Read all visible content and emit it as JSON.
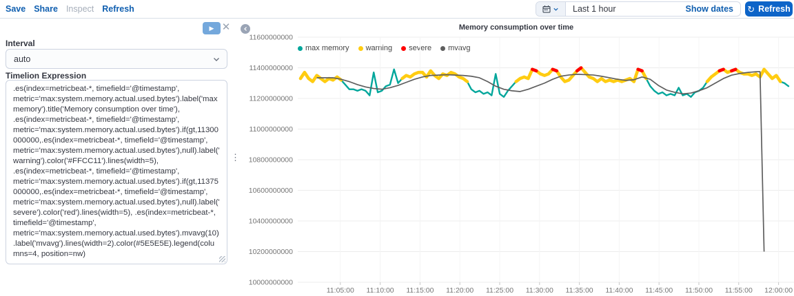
{
  "top_bar": {
    "links": [
      {
        "label": "Save",
        "disabled": false
      },
      {
        "label": "Share",
        "disabled": false
      },
      {
        "label": "Inspect",
        "disabled": true
      },
      {
        "label": "Refresh",
        "disabled": false
      }
    ],
    "time_picker": {
      "calendar_icon": "calendar-icon",
      "chevron_icon": "chevron-down-icon",
      "selected_range": "Last 1 hour",
      "show_dates_label": "Show dates",
      "refresh_label": "Refresh",
      "refresh_icon": "refresh-icon"
    }
  },
  "editor_panel": {
    "play_icon": "play-icon",
    "close_icon": "close-icon",
    "interval": {
      "label": "Interval",
      "value": "auto"
    },
    "expression": {
      "label": "Timelion Expression",
      "value": ".es(index=metricbeat-*, timefield='@timestamp', metric='max:system.memory.actual.used.bytes').label('max memory').title('Memory consumption over time'), .es(index=metricbeat-*, timefield='@timestamp', metric='max:system.memory.actual.used.bytes').if(gt,11300000000,.es(index=metricbeat-*, timefield='@timestamp', metric='max:system.memory.actual.used.bytes'),null).label('warning').color('#FFCC11').lines(width=5), .es(index=metricbeat-*, timefield='@timestamp', metric='max:system.memory.actual.used.bytes').if(gt,11375000000,.es(index=metricbeat-*, timefield='@timestamp', metric='max:system.memory.actual.used.bytes'),null).label('severe').color('red').lines(width=5), .es(index=metricbeat-*, timefield='@timestamp', metric='max:system.memory.actual.used.bytes').mvavg(10).label('mvavg').lines(width=2).color(#5E5E5E).legend(columns=4, position=nw)"
    }
  },
  "colors": {
    "link_blue": "#105fb0",
    "button_blue": "#0d64c8",
    "max_memory_teal": "#00A69B",
    "warning_yellow": "#FFCC11",
    "severe_red": "#FF0000",
    "mvavg_gray": "#5E5E5E"
  },
  "chart_data": {
    "type": "line",
    "title": "Memory consumption over time",
    "time_range": {
      "from": "11:00:00",
      "to": "12:00:00"
    },
    "x_axis": {
      "ticks": [
        "11:05:00",
        "11:10:00",
        "11:15:00",
        "11:20:00",
        "11:25:00",
        "11:30:00",
        "11:35:00",
        "11:40:00",
        "11:45:00",
        "11:50:00",
        "11:55:00",
        "12:00:00"
      ]
    },
    "y_axis": {
      "min": 10000000000,
      "max": 11600000000,
      "ticks": [
        "11600000000",
        "11400000000",
        "11200000000",
        "11000000000",
        "10800000000",
        "10600000000",
        "10400000000",
        "10200000000",
        "10000000000"
      ]
    },
    "value_scale": 1000000000,
    "legend": {
      "position": "nw",
      "columns": 4
    },
    "series": [
      {
        "name": "max memory",
        "type": "line",
        "color": "#00A69B",
        "line_width": 2.4,
        "start": "11:00:00",
        "interval_seconds": 30,
        "values_e9": [
          11.33,
          11.37,
          11.33,
          11.31,
          11.35,
          11.33,
          11.31,
          11.33,
          11.32,
          11.34,
          11.32,
          11.29,
          11.26,
          11.26,
          11.25,
          11.26,
          11.25,
          11.22,
          11.37,
          11.24,
          11.25,
          11.28,
          11.29,
          11.39,
          11.3,
          11.33,
          11.35,
          11.34,
          11.36,
          11.37,
          11.37,
          11.34,
          11.38,
          11.35,
          11.33,
          11.36,
          11.35,
          11.37,
          11.36,
          11.34,
          11.33,
          11.31,
          11.26,
          11.24,
          11.25,
          11.23,
          11.24,
          11.22,
          11.36,
          11.23,
          11.21,
          11.25,
          11.28,
          11.31,
          11.33,
          11.34,
          11.33,
          11.39,
          11.38,
          11.36,
          11.35,
          11.36,
          11.39,
          11.38,
          11.34,
          11.31,
          11.32,
          11.35,
          11.38,
          11.4,
          11.37,
          11.34,
          11.33,
          11.31,
          11.33,
          11.31,
          11.32,
          11.31,
          11.32,
          11.31,
          11.32,
          11.33,
          11.31,
          11.39,
          11.38,
          11.33,
          11.28,
          11.25,
          11.23,
          11.24,
          11.22,
          11.23,
          11.22,
          11.27,
          11.22,
          11.23,
          11.21,
          11.24,
          11.25,
          11.27,
          11.31,
          11.34,
          11.36,
          11.38,
          11.39,
          11.37,
          11.38,
          11.39,
          11.37,
          11.36,
          11.36,
          11.35,
          11.36,
          11.34,
          11.39,
          11.36,
          11.33,
          11.35,
          11.31,
          11.3,
          11.28
        ]
      },
      {
        "name": "warning",
        "type": "threshold-overlay",
        "color": "#FFCC11",
        "line_width": 4.6,
        "threshold_e9": 11.3,
        "source": "max memory"
      },
      {
        "name": "severe",
        "type": "threshold-overlay",
        "color": "#FF0000",
        "line_width": 4.6,
        "threshold_e9": 11.375,
        "source": "max memory"
      },
      {
        "name": "mvavg",
        "type": "line",
        "color": "#5E5E5E",
        "line_width": 1.7,
        "points_min_e9": [
          [
            2,
            11.335
          ],
          [
            4,
            11.335
          ],
          [
            5,
            11.325
          ],
          [
            6,
            11.31
          ],
          [
            7,
            11.29
          ],
          [
            8,
            11.275
          ],
          [
            9,
            11.265
          ],
          [
            10,
            11.26
          ],
          [
            11,
            11.27
          ],
          [
            12,
            11.285
          ],
          [
            13,
            11.305
          ],
          [
            14,
            11.325
          ],
          [
            15,
            11.34
          ],
          [
            16,
            11.35
          ],
          [
            18,
            11.355
          ],
          [
            20,
            11.35
          ],
          [
            21,
            11.345
          ],
          [
            22,
            11.335
          ],
          [
            23,
            11.31
          ],
          [
            24,
            11.28
          ],
          [
            25,
            11.26
          ],
          [
            26,
            11.25
          ],
          [
            27,
            11.245
          ],
          [
            28,
            11.26
          ],
          [
            29,
            11.28
          ],
          [
            30,
            11.3
          ],
          [
            31,
            11.325
          ],
          [
            32,
            11.345
          ],
          [
            33,
            11.353
          ],
          [
            34,
            11.358
          ],
          [
            36,
            11.353
          ],
          [
            37,
            11.345
          ],
          [
            38,
            11.335
          ],
          [
            39,
            11.325
          ],
          [
            40,
            11.318
          ],
          [
            41,
            11.322
          ],
          [
            42,
            11.34
          ],
          [
            43,
            11.325
          ],
          [
            44,
            11.285
          ],
          [
            45,
            11.255
          ],
          [
            46,
            11.24
          ],
          [
            47,
            11.23
          ],
          [
            48,
            11.235
          ],
          [
            49,
            11.25
          ],
          [
            50,
            11.27
          ],
          [
            51,
            11.3
          ],
          [
            52,
            11.33
          ],
          [
            53,
            11.352
          ],
          [
            54,
            11.363
          ],
          [
            55,
            11.37
          ],
          [
            56,
            11.374
          ],
          [
            56.5,
            11.375
          ],
          [
            57,
            10.2
          ]
        ]
      }
    ]
  }
}
